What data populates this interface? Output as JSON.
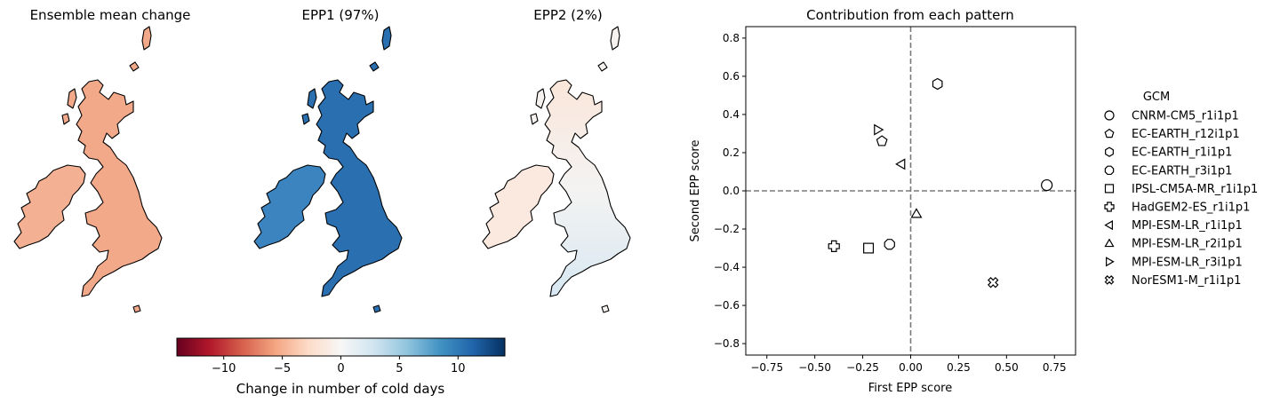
{
  "maps": [
    {
      "title": "Ensemble mean change",
      "fill": "#f2a98a",
      "ireland_fill": "#f4b093",
      "south_fill": "#f2a98a",
      "scotland_fill": "#f1a385"
    },
    {
      "title": "EPP1 (97%)",
      "fill": "#2a6fb0",
      "ireland_fill": "#3c84bf",
      "south_fill": "#2f75b4",
      "scotland_fill": "#1c5a9c"
    },
    {
      "title": "EPP2 (2%)",
      "fill": "#f6f2f0",
      "ireland_fill": "#fbe9df",
      "south_fill": "#e2eef5",
      "scotland_fill": "#fae6da"
    }
  ],
  "colorbar": {
    "label": "Change in number of cold days",
    "min": -14,
    "max": 14,
    "ticks": [
      -10,
      -5,
      0,
      5,
      10
    ],
    "tick_labels": [
      "−10",
      "−5",
      "0",
      "5",
      "10"
    ],
    "colormap": "RdBu",
    "stops": [
      "#67001f",
      "#b2182b",
      "#d6604d",
      "#f4a582",
      "#fddbc7",
      "#f7f7f7",
      "#d1e5f0",
      "#92c5de",
      "#4393c3",
      "#2166ac",
      "#053061"
    ]
  },
  "chart_data": {
    "type": "scatter",
    "title": "Contribution from each pattern",
    "xlabel": "First EPP score",
    "ylabel": "Second EPP score",
    "xlim": [
      -0.86,
      0.86
    ],
    "ylim": [
      -0.86,
      0.86
    ],
    "xticks": [
      -0.75,
      -0.5,
      -0.25,
      0.0,
      0.25,
      0.5,
      0.75
    ],
    "xtick_labels": [
      "−0.75",
      "−0.50",
      "−0.25",
      "0.00",
      "0.25",
      "0.50",
      "0.75"
    ],
    "yticks": [
      -0.8,
      -0.6,
      -0.4,
      -0.2,
      0.0,
      0.2,
      0.4,
      0.6,
      0.8
    ],
    "ytick_labels": [
      "−0.8",
      "−0.6",
      "−0.4",
      "−0.2",
      "0.0",
      "0.2",
      "0.4",
      "0.6",
      "0.8"
    ],
    "reference_lines": {
      "x": 0.0,
      "y": 0.0,
      "style": "dashed"
    },
    "legend_title": "GCM",
    "legend_position": "right",
    "grid": false,
    "series": [
      {
        "name": "CNRM-CM5_r1i1p1",
        "marker": "circle",
        "x": 0.71,
        "y": 0.03
      },
      {
        "name": "EC-EARTH_r12i1p1",
        "marker": "pentagon",
        "x": -0.15,
        "y": 0.26
      },
      {
        "name": "EC-EARTH_r1i1p1",
        "marker": "hexagon",
        "x": 0.14,
        "y": 0.56
      },
      {
        "name": "EC-EARTH_r3i1p1",
        "marker": "octagon",
        "x": -0.11,
        "y": -0.28
      },
      {
        "name": "IPSL-CM5A-MR_r1i1p1",
        "marker": "square",
        "x": -0.22,
        "y": -0.3
      },
      {
        "name": "HadGEM2-ES_r1i1p1",
        "marker": "plus",
        "x": -0.4,
        "y": -0.29
      },
      {
        "name": "MPI-ESM-LR_r1i1p1",
        "marker": "triangle-left",
        "x": -0.05,
        "y": 0.14
      },
      {
        "name": "MPI-ESM-LR_r2i1p1",
        "marker": "triangle-up",
        "x": 0.03,
        "y": -0.12
      },
      {
        "name": "MPI-ESM-LR_r3i1p1",
        "marker": "triangle-right",
        "x": -0.17,
        "y": 0.32
      },
      {
        "name": "NorESM1-M_r1i1p1",
        "marker": "x-filled",
        "x": 0.43,
        "y": -0.48
      }
    ]
  }
}
